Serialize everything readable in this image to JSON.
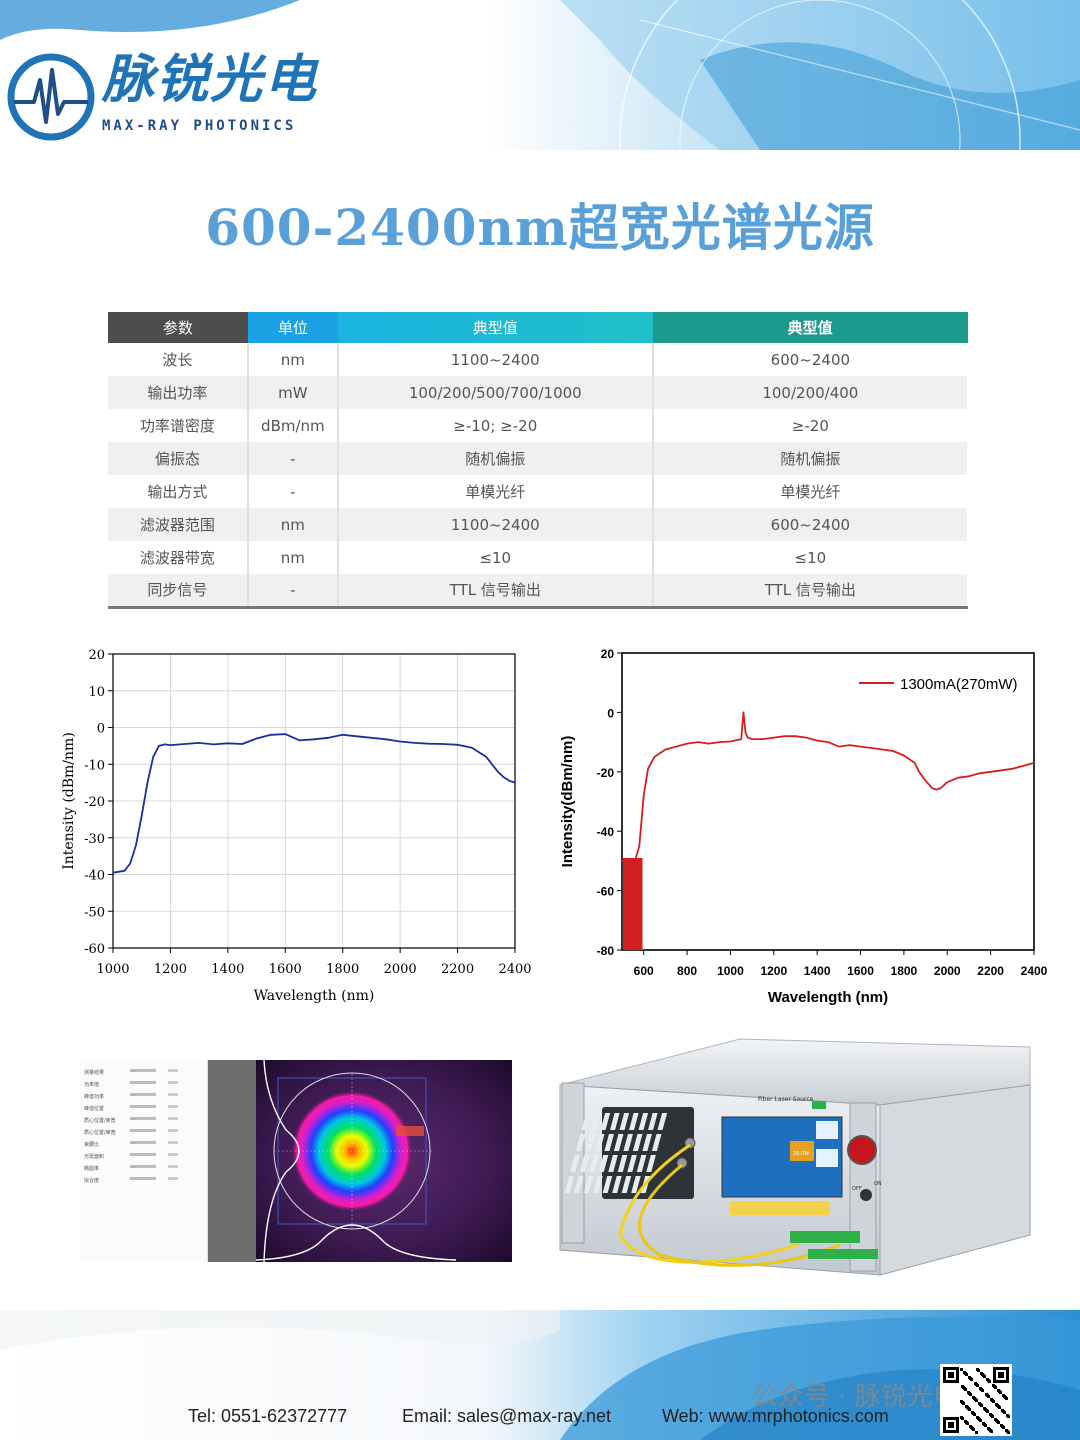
{
  "brand": {
    "name_cn": "脉锐光电",
    "name_en": "MAX-RAY PHOTONICS"
  },
  "title": "600-2400nm超宽光谱光源",
  "spec_table": {
    "headers": [
      "参数",
      "单位",
      "典型值",
      "典型值"
    ],
    "rows": [
      [
        "波长",
        "nm",
        "1100~2400",
        "600~2400"
      ],
      [
        "输出功率",
        "mW",
        "100/200/500/700/1000",
        "100/200/400"
      ],
      [
        "功率谱密度",
        "dBm/nm",
        "≥-10; ≥-20",
        "≥-20"
      ],
      [
        "偏振态",
        "-",
        "随机偏振",
        "随机偏振"
      ],
      [
        "输出方式",
        "-",
        "单模光纤",
        "单模光纤"
      ],
      [
        "滤波器范围",
        "nm",
        "1100~2400",
        "600~2400"
      ],
      [
        "滤波器带宽",
        "nm",
        "≤10",
        "≤10"
      ],
      [
        "同步信号",
        "-",
        "TTL 信号输出",
        "TTL 信号输出"
      ]
    ]
  },
  "chart_data": [
    {
      "type": "line",
      "xlabel": "Wavelength (nm)",
      "ylabel": "Intensity (dBm/nm)",
      "xlim": [
        1000,
        2400
      ],
      "ylim": [
        -60,
        20
      ],
      "xticks": [
        1000,
        1200,
        1400,
        1600,
        1800,
        2000,
        2200,
        2400
      ],
      "yticks": [
        20,
        10,
        0,
        -10,
        -20,
        -30,
        -40,
        -50,
        -60
      ],
      "grid": true,
      "color": "#1a2f9e",
      "series": [
        {
          "x": [
            1000,
            1040,
            1060,
            1080,
            1100,
            1120,
            1140,
            1160,
            1180,
            1200,
            1250,
            1300,
            1350,
            1400,
            1450,
            1500,
            1550,
            1600,
            1650,
            1700,
            1750,
            1800,
            1850,
            1900,
            1950,
            2000,
            2050,
            2100,
            2150,
            2200,
            2250,
            2280,
            2300,
            2320,
            2340,
            2360,
            2380,
            2400
          ],
          "y": [
            -39.5,
            -39,
            -37,
            -32,
            -24,
            -15,
            -8,
            -5,
            -4.6,
            -4.8,
            -4.5,
            -4.2,
            -4.6,
            -4.3,
            -4.5,
            -3,
            -2,
            -1.8,
            -3.5,
            -3.2,
            -2.8,
            -2,
            -2.4,
            -2.8,
            -3.2,
            -3.8,
            -4.2,
            -4.4,
            -4.5,
            -4.7,
            -5.5,
            -7,
            -8,
            -10,
            -12,
            -13.5,
            -14.5,
            -15
          ]
        }
      ]
    },
    {
      "type": "line",
      "xlabel": "Wavelength (nm)",
      "ylabel": "Intensity(dBm/nm)",
      "xlim": [
        500,
        2400
      ],
      "ylim": [
        -80,
        20
      ],
      "xticks": [
        600,
        800,
        1000,
        1200,
        1400,
        1600,
        1800,
        2000,
        2200,
        2400
      ],
      "yticks": [
        20,
        0,
        -20,
        -40,
        -60,
        -80
      ],
      "grid": false,
      "legend": "top-right",
      "color": "#d31f1f",
      "series": [
        {
          "name": "1300mA(270mW)",
          "x": [
            500,
            560,
            580,
            600,
            620,
            650,
            700,
            750,
            800,
            850,
            900,
            950,
            1000,
            1050,
            1060,
            1070,
            1080,
            1100,
            1150,
            1200,
            1250,
            1300,
            1350,
            1400,
            1450,
            1500,
            1550,
            1600,
            1650,
            1700,
            1750,
            1800,
            1850,
            1870,
            1900,
            1930,
            1950,
            1970,
            2000,
            2050,
            2100,
            2150,
            2200,
            2250,
            2300,
            2350,
            2400
          ],
          "y": [
            -50,
            -50,
            -45,
            -28,
            -19,
            -15,
            -12.5,
            -11.5,
            -10.5,
            -10,
            -10.5,
            -10,
            -9.8,
            -9,
            0,
            -7,
            -8.5,
            -9,
            -9,
            -8.5,
            -8,
            -8,
            -8.5,
            -9.5,
            -10,
            -11.5,
            -11,
            -11.5,
            -12,
            -12.5,
            -13,
            -14.5,
            -17,
            -20,
            -23,
            -25.5,
            -26,
            -25.5,
            -23.5,
            -22,
            -21.5,
            -20.5,
            -20,
            -19.5,
            -19,
            -18,
            -17
          ]
        }
      ]
    }
  ],
  "beam_panel": {
    "rows": [
      "测量结果",
      "功率值",
      "峰值功率",
      "峰值位置",
      "质心位置/束宽",
      "质心位置/束宽",
      "束腰比",
      "光斑面积",
      "椭圆率",
      "拟合度"
    ]
  },
  "device": {
    "panel_title": "Fiber Laser Source",
    "button_on": "ON",
    "button_off": "OFF",
    "power_readout": "20.0W"
  },
  "footer": {
    "tel": "Tel: 0551-62372777",
    "email": "Email: sales@max-ray.net",
    "web": "Web: www.mrphotonics.com",
    "wechat": "公众号 · 脉锐光电"
  }
}
